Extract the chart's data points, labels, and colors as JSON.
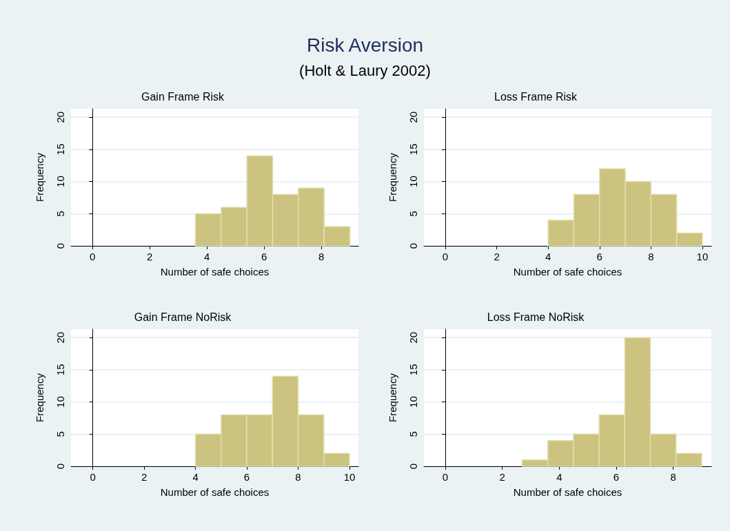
{
  "chart_data": [
    {
      "type": "histogram",
      "title": "Gain Frame Risk",
      "xlabel": "Number of safe choices",
      "ylabel": "Frequency",
      "annotations": [
        "Risk Aversion",
        "(Holt & Laury 2002)"
      ],
      "bins": [
        3.6,
        4.5,
        5.4,
        6.3,
        7.2,
        8.1,
        9
      ],
      "values": [
        5,
        6,
        14,
        8,
        9,
        3
      ],
      "color": "#cbc37f",
      "xlim": [
        -0.75,
        9.3
      ],
      "xticks": [
        0,
        2,
        4,
        6,
        8
      ],
      "ylim": [
        0,
        21.3
      ],
      "yticks": [
        0,
        5,
        10,
        15,
        20
      ],
      "grid": "y"
    },
    {
      "type": "histogram",
      "title": "Loss Frame Risk",
      "xlabel": "Number of safe choices",
      "ylabel": "Frequency",
      "bins": [
        4,
        5,
        6,
        7,
        8,
        9,
        10
      ],
      "values": [
        4,
        8,
        12,
        10,
        8,
        2
      ],
      "color": "#cbc37f",
      "xlim": [
        -0.83,
        10.35
      ],
      "xticks": [
        0,
        2,
        4,
        6,
        8,
        10
      ],
      "ylim": [
        0,
        21.3
      ],
      "yticks": [
        0,
        5,
        10,
        15,
        20
      ],
      "grid": "y"
    },
    {
      "type": "histogram",
      "title": "Gain Frame NoRisk",
      "xlabel": "Number of safe choices",
      "ylabel": "Frequency",
      "bins": [
        4,
        5,
        6,
        7,
        8,
        9,
        10
      ],
      "values": [
        5,
        8,
        8,
        14,
        8,
        2
      ],
      "color": "#cbc37f",
      "xlim": [
        -0.85,
        10.35
      ],
      "xticks": [
        0,
        2,
        4,
        6,
        8,
        10
      ],
      "ylim": [
        0,
        21.3
      ],
      "yticks": [
        0,
        5,
        10,
        15,
        20
      ],
      "grid": "y"
    },
    {
      "type": "histogram",
      "title": "Loss Frame NoRisk",
      "xlabel": "Number of safe choices",
      "ylabel": "Frequency",
      "bins": [
        2.7,
        3.6,
        4.5,
        5.4,
        6.3,
        7.2,
        8.1,
        9
      ],
      "values": [
        1,
        4,
        5,
        8,
        20,
        5,
        2
      ],
      "color": "#cbc37f",
      "xlim": [
        -0.75,
        9.34
      ],
      "xticks": [
        0,
        2,
        4,
        6,
        8
      ],
      "ylim": [
        0,
        21.3
      ],
      "yticks": [
        0,
        5,
        10,
        15,
        20
      ],
      "grid": "y"
    }
  ]
}
